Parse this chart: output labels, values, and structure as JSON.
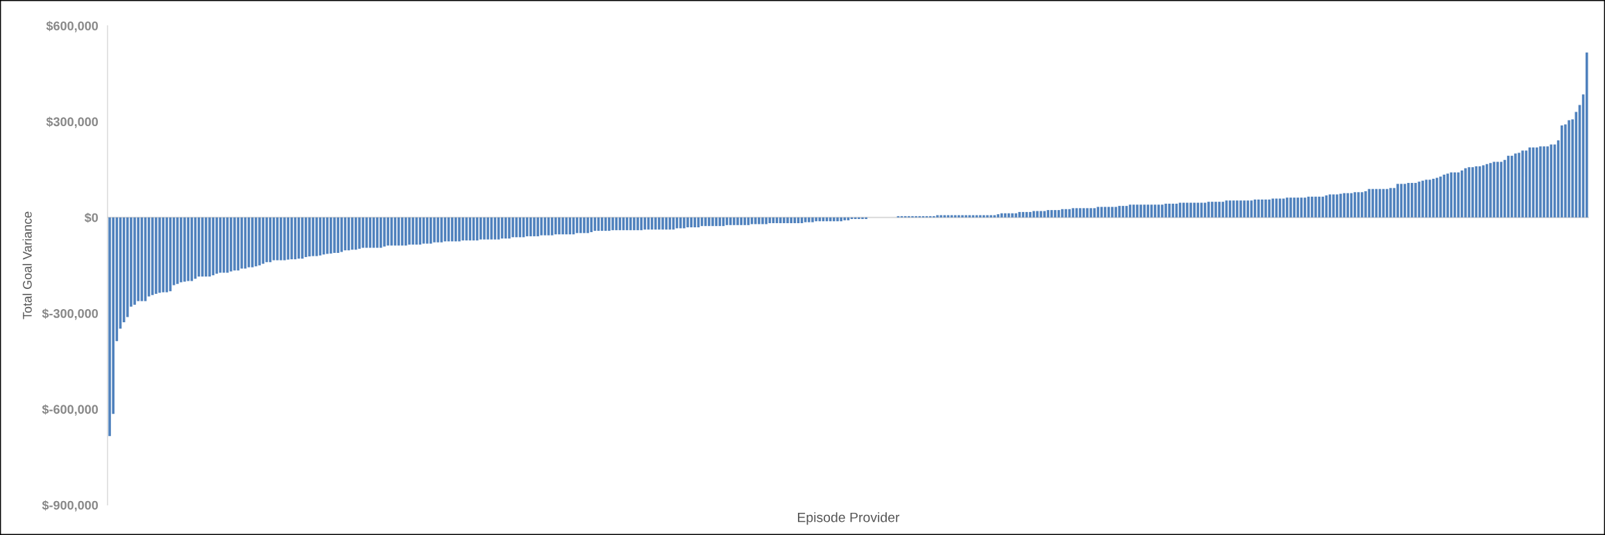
{
  "chart_data": {
    "type": "bar",
    "xlabel": "Episode Provider",
    "ylabel": "Total Goal Variance",
    "categories": [
      null,
      null,
      null,
      null,
      null,
      null,
      null,
      null,
      null,
      null,
      null,
      null,
      null,
      null,
      null,
      null,
      null,
      null,
      null,
      null,
      null,
      null,
      null,
      null,
      null,
      null,
      null,
      null,
      null,
      null,
      null,
      null,
      null,
      null,
      null,
      null,
      null,
      null,
      null,
      null,
      null,
      null,
      null,
      null,
      null,
      null,
      null,
      null,
      null,
      null,
      null,
      null,
      null,
      null,
      null,
      null,
      null,
      null,
      null,
      null,
      null,
      null,
      null,
      null,
      null,
      null,
      null,
      null,
      null,
      null,
      null,
      null,
      null,
      null,
      null,
      null,
      null,
      null,
      null,
      null,
      null,
      null,
      null,
      null,
      null,
      null,
      null,
      null,
      null,
      null,
      null,
      null,
      null,
      null,
      null,
      null,
      null,
      null,
      null,
      null,
      null,
      null,
      null,
      null,
      null,
      null,
      null,
      null,
      null,
      null,
      null,
      null,
      null,
      null,
      null,
      null,
      null,
      null,
      null,
      null,
      null,
      null,
      null,
      null,
      null,
      null,
      null,
      null,
      null,
      null,
      null,
      null,
      null,
      null,
      null,
      null,
      null,
      null,
      null,
      null,
      null,
      null,
      null,
      null,
      null,
      null,
      null,
      null,
      null,
      null,
      null,
      null,
      null,
      null,
      null,
      null,
      null,
      null,
      null,
      null,
      null,
      null,
      null,
      null,
      null,
      null,
      null,
      null,
      null,
      null,
      null,
      null,
      null,
      null,
      null,
      null,
      null,
      null,
      null,
      null,
      null,
      null,
      null,
      null,
      null,
      null,
      null,
      null,
      null,
      null,
      null,
      null,
      null,
      null,
      null,
      null,
      null,
      null,
      null,
      null,
      null,
      null,
      null,
      null,
      null,
      null,
      null,
      null,
      null,
      null,
      null,
      null,
      null,
      null,
      null,
      null,
      null,
      null,
      null,
      null,
      null,
      null,
      null,
      null,
      null,
      null,
      null,
      null,
      null,
      null,
      null,
      null,
      null,
      null,
      null,
      null,
      null,
      null,
      null,
      null,
      null,
      null,
      null,
      null,
      null,
      null,
      null,
      null,
      null,
      null,
      null,
      null,
      null,
      null,
      null,
      null,
      null,
      null,
      null,
      null,
      null,
      null,
      null,
      null,
      null,
      null,
      null,
      null,
      null,
      null,
      null,
      null,
      null,
      null,
      null,
      null,
      null,
      null,
      null,
      null,
      null,
      null,
      null,
      null,
      null,
      null,
      null,
      null,
      null,
      null,
      null,
      null,
      null,
      null,
      null,
      null,
      null,
      null,
      null,
      null,
      null,
      null,
      null,
      null,
      null,
      null,
      null,
      null,
      null,
      null,
      null,
      null,
      null,
      null,
      null,
      null,
      null,
      null,
      null,
      null,
      null,
      null,
      null,
      null,
      null,
      null,
      null,
      null,
      null,
      null,
      null,
      null,
      null,
      null,
      null,
      null,
      null,
      null,
      null,
      null,
      null,
      null,
      null,
      null,
      null,
      null,
      null,
      null,
      null,
      null,
      null,
      null,
      null,
      null,
      null,
      null,
      null,
      null,
      null,
      null,
      null,
      null,
      null,
      null,
      null,
      null,
      null,
      null,
      null,
      null,
      null,
      null,
      null,
      null,
      null,
      null,
      null,
      null,
      null,
      null,
      null,
      null,
      null,
      null,
      null,
      null,
      null,
      null,
      null,
      null,
      null,
      null,
      null,
      null,
      null,
      null,
      null,
      null,
      null,
      null,
      null,
      null,
      null,
      null,
      null,
      null,
      null,
      null,
      null,
      null,
      null,
      null,
      null,
      null,
      null
    ],
    "values": [
      -684000,
      -615000,
      -387000,
      -348000,
      -328000,
      -312000,
      -279000,
      -273000,
      -262000,
      -262000,
      -262000,
      -247000,
      -243000,
      -239000,
      -236000,
      -234000,
      -234000,
      -231000,
      -212000,
      -208000,
      -203000,
      -201000,
      -199000,
      -199000,
      -192000,
      -185000,
      -185000,
      -185000,
      -185000,
      -181000,
      -176000,
      -173000,
      -173000,
      -173000,
      -169000,
      -166000,
      -166000,
      -160000,
      -160000,
      -156000,
      -156000,
      -153000,
      -150000,
      -145000,
      -140000,
      -140000,
      -134000,
      -134000,
      -134000,
      -134000,
      -132000,
      -131000,
      -131000,
      -129000,
      -129000,
      -124000,
      -122000,
      -121000,
      -121000,
      -119000,
      -116000,
      -114000,
      -113000,
      -111000,
      -111000,
      -108000,
      -103000,
      -103000,
      -101000,
      -101000,
      -98000,
      -95000,
      -95000,
      -95000,
      -95000,
      -95000,
      -95000,
      -91000,
      -88000,
      -88000,
      -88000,
      -88000,
      -88000,
      -88000,
      -85000,
      -85000,
      -85000,
      -85000,
      -82000,
      -82000,
      -82000,
      -78000,
      -78000,
      -78000,
      -75000,
      -75000,
      -75000,
      -75000,
      -75000,
      -72000,
      -72000,
      -72000,
      -72000,
      -72000,
      -69000,
      -69000,
      -69000,
      -69000,
      -69000,
      -69000,
      -66000,
      -66000,
      -66000,
      -62000,
      -62000,
      -62000,
      -62000,
      -59000,
      -59000,
      -59000,
      -59000,
      -56000,
      -56000,
      -56000,
      -56000,
      -53000,
      -53000,
      -53000,
      -53000,
      -53000,
      -53000,
      -49000,
      -49000,
      -49000,
      -49000,
      -46000,
      -42000,
      -42000,
      -42000,
      -42000,
      -42000,
      -40000,
      -40000,
      -40000,
      -40000,
      -40000,
      -40000,
      -40000,
      -40000,
      -40000,
      -38000,
      -38000,
      -38000,
      -38000,
      -38000,
      -38000,
      -38000,
      -38000,
      -38000,
      -34000,
      -34000,
      -34000,
      -31000,
      -31000,
      -31000,
      -31000,
      -27000,
      -27000,
      -27000,
      -27000,
      -27000,
      -27000,
      -27000,
      -24000,
      -24000,
      -24000,
      -24000,
      -24000,
      -24000,
      -24000,
      -21000,
      -21000,
      -21000,
      -21000,
      -21000,
      -18000,
      -18000,
      -18000,
      -18000,
      -18000,
      -18000,
      -18000,
      -18000,
      -18000,
      -18000,
      -15000,
      -15000,
      -15000,
      -12000,
      -12000,
      -12000,
      -12000,
      -12000,
      -12000,
      -12000,
      -12000,
      -9000,
      -9000,
      -5000,
      -5000,
      -5000,
      -5000,
      -5000,
      0,
      0,
      0,
      0,
      0,
      0,
      0,
      0,
      4000,
      4000,
      4000,
      4000,
      4000,
      4000,
      4000,
      4000,
      4000,
      4000,
      4000,
      7000,
      7000,
      7000,
      7000,
      7000,
      7000,
      7000,
      7000,
      7000,
      7000,
      7000,
      7000,
      7000,
      7000,
      7000,
      7000,
      7000,
      10000,
      13000,
      13000,
      13000,
      13000,
      13000,
      17000,
      17000,
      17000,
      17000,
      20000,
      20000,
      20000,
      20000,
      23000,
      23000,
      23000,
      23000,
      26000,
      26000,
      26000,
      29000,
      29000,
      29000,
      29000,
      29000,
      29000,
      29000,
      33000,
      33000,
      33000,
      33000,
      33000,
      33000,
      36000,
      36000,
      36000,
      40000,
      40000,
      40000,
      40000,
      40000,
      40000,
      40000,
      40000,
      40000,
      40000,
      43000,
      43000,
      43000,
      43000,
      46000,
      46000,
      46000,
      46000,
      46000,
      46000,
      46000,
      46000,
      49000,
      49000,
      49000,
      49000,
      49000,
      53000,
      53000,
      53000,
      53000,
      53000,
      53000,
      53000,
      53000,
      56000,
      56000,
      56000,
      56000,
      56000,
      59000,
      59000,
      59000,
      59000,
      62000,
      62000,
      62000,
      62000,
      62000,
      62000,
      65000,
      65000,
      65000,
      65000,
      65000,
      69000,
      72000,
      72000,
      72000,
      74000,
      76000,
      76000,
      76000,
      79000,
      79000,
      79000,
      82000,
      89000,
      89000,
      89000,
      89000,
      89000,
      89000,
      92000,
      92000,
      105000,
      105000,
      105000,
      108000,
      108000,
      108000,
      112000,
      115000,
      118000,
      118000,
      121000,
      124000,
      128000,
      134000,
      137000,
      141000,
      141000,
      141000,
      147000,
      154000,
      157000,
      157000,
      160000,
      160000,
      163000,
      167000,
      170000,
      174000,
      174000,
      174000,
      180000,
      193000,
      193000,
      200000,
      202000,
      209000,
      209000,
      219000,
      219000,
      219000,
      222000,
      222000,
      222000,
      228000,
      228000,
      241000,
      288000,
      291000,
      304000,
      307000,
      330000,
      352000,
      385000,
      516000
    ],
    "color": "#4f81bd",
    "ylim": [
      -900000,
      600000
    ],
    "yticks": [
      {
        "value": -900000,
        "label": "$-900,000"
      },
      {
        "value": -600000,
        "label": "$-600,000"
      },
      {
        "value": -300000,
        "label": "$-300,000"
      },
      {
        "value": 0,
        "label": "$0"
      },
      {
        "value": 300000,
        "label": "$300,000"
      },
      {
        "value": 600000,
        "label": "$600,000"
      }
    ],
    "ref_lines": [
      {
        "axis": "y",
        "value": 0,
        "color": "#d9d9d9"
      }
    ],
    "grid": false,
    "legend": false
  }
}
